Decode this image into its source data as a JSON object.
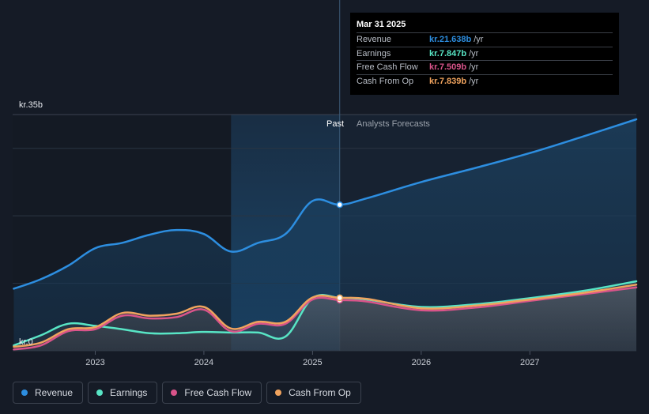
{
  "chart_data": {
    "type": "line",
    "ylabel_top": "kr.35b",
    "ylabel_bottom": "kr.0",
    "ylim": [
      0,
      35
    ],
    "xlim": [
      2022.24,
      2027.98
    ],
    "x_ticks": [
      "2023",
      "2024",
      "2025",
      "2026",
      "2027"
    ],
    "divider_x": 2025.25,
    "past_label": "Past",
    "forecast_label": "Analysts Forecasts",
    "series": [
      {
        "name": "Revenue",
        "color": "#2d8ee0",
        "x": [
          2022.25,
          2022.5,
          2022.75,
          2023.0,
          2023.25,
          2023.5,
          2023.75,
          2024.0,
          2024.25,
          2024.5,
          2024.75,
          2025.0,
          2025.25,
          2025.5,
          2026.0,
          2026.5,
          2027.0,
          2027.5,
          2027.98
        ],
        "values": [
          9.2,
          10.6,
          12.6,
          15.2,
          16.0,
          17.2,
          17.9,
          17.3,
          14.7,
          16.0,
          17.3,
          22.2,
          21.64,
          22.6,
          25.0,
          27.1,
          29.3,
          31.8,
          34.3
        ]
      },
      {
        "name": "Earnings",
        "color": "#58e5c5",
        "x": [
          2022.25,
          2022.5,
          2022.75,
          2023.0,
          2023.25,
          2023.5,
          2023.75,
          2024.0,
          2024.25,
          2024.5,
          2024.75,
          2025.0,
          2025.25,
          2025.5,
          2026.0,
          2026.5,
          2027.0,
          2027.5,
          2027.98
        ],
        "values": [
          0.8,
          2.3,
          4.0,
          3.7,
          3.2,
          2.6,
          2.6,
          2.8,
          2.7,
          2.7,
          2.1,
          7.8,
          7.85,
          7.6,
          6.5,
          6.9,
          7.8,
          8.9,
          10.3
        ]
      },
      {
        "name": "Free Cash Flow",
        "color": "#d9548a",
        "x": [
          2022.25,
          2022.5,
          2022.75,
          2023.0,
          2023.25,
          2023.5,
          2023.75,
          2024.0,
          2024.25,
          2024.5,
          2024.75,
          2025.0,
          2025.25,
          2025.5,
          2026.0,
          2026.5,
          2027.0,
          2027.5,
          2027.98
        ],
        "values": [
          0.2,
          0.8,
          2.9,
          3.2,
          5.2,
          4.8,
          5.0,
          6.1,
          2.9,
          4.0,
          4.0,
          7.6,
          7.51,
          7.3,
          6.0,
          6.4,
          7.4,
          8.4,
          9.4
        ]
      },
      {
        "name": "Cash From Op",
        "color": "#f0a35e",
        "x": [
          2022.25,
          2022.5,
          2022.75,
          2023.0,
          2023.25,
          2023.5,
          2023.75,
          2024.0,
          2024.25,
          2024.5,
          2024.75,
          2025.0,
          2025.25,
          2025.5,
          2026.0,
          2026.5,
          2027.0,
          2027.5,
          2027.98
        ],
        "values": [
          0.6,
          1.2,
          3.2,
          3.5,
          5.6,
          5.2,
          5.5,
          6.5,
          3.3,
          4.3,
          4.3,
          7.9,
          7.84,
          7.7,
          6.3,
          6.7,
          7.6,
          8.6,
          9.8
        ]
      }
    ]
  },
  "tooltip": {
    "date": "Mar 31 2025",
    "rows": [
      {
        "label": "Revenue",
        "value": "kr.21.638b",
        "unit": "/yr",
        "color": "#2d8ee0"
      },
      {
        "label": "Earnings",
        "value": "kr.7.847b",
        "unit": "/yr",
        "color": "#58e5c5"
      },
      {
        "label": "Free Cash Flow",
        "value": "kr.7.509b",
        "unit": "/yr",
        "color": "#d9548a"
      },
      {
        "label": "Cash From Op",
        "value": "kr.7.839b",
        "unit": "/yr",
        "color": "#f0a35e"
      }
    ]
  },
  "legend": [
    {
      "label": "Revenue",
      "color": "#2d8ee0"
    },
    {
      "label": "Earnings",
      "color": "#58e5c5"
    },
    {
      "label": "Free Cash Flow",
      "color": "#d9548a"
    },
    {
      "label": "Cash From Op",
      "color": "#f0a35e"
    }
  ]
}
